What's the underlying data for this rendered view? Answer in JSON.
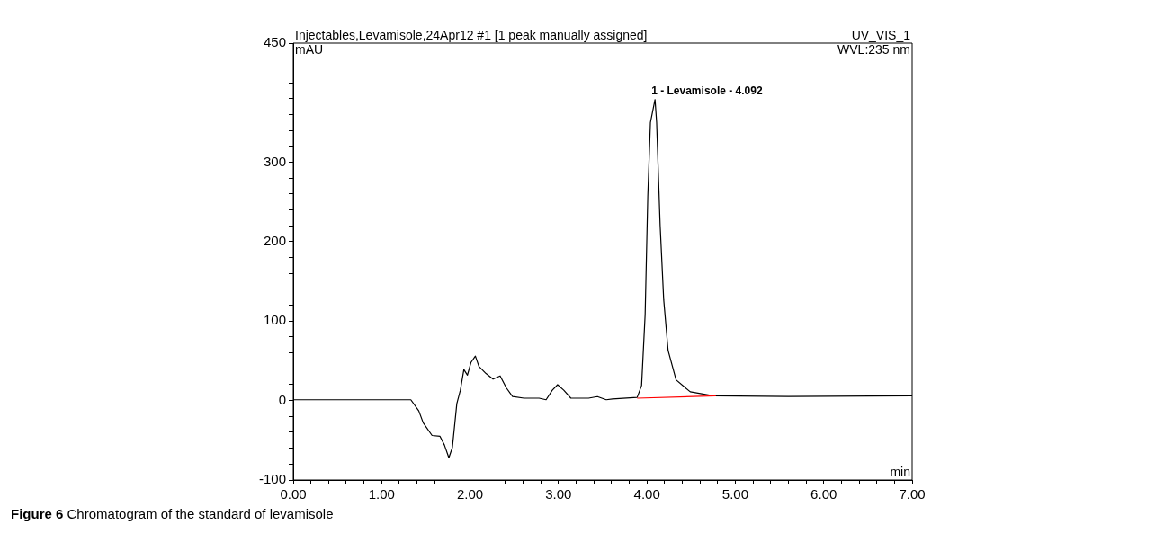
{
  "chart_data": {
    "type": "line",
    "title": "Injectables,Levamisole,24Apr12 #1 [1 peak manually assigned]",
    "subtitle": "UV_VIS_1",
    "ylabel": "mAU",
    "xlabel": "min",
    "annotations": [
      "WVL:235 nm",
      {
        "text": "1 - Levamisole - 4.092",
        "x": 4.092,
        "y": 379
      },
      "Figure 6 Chromatogram of the standard of levamisole"
    ],
    "series": [
      {
        "color": "#000000",
        "x": [
          0,
          0.5,
          1.0,
          1.33,
          1.42,
          1.47,
          1.57,
          1.66,
          1.71,
          1.76,
          1.8,
          1.85,
          1.89,
          1.93,
          1.97,
          2.01,
          2.06,
          2.1,
          2.18,
          2.26,
          2.34,
          2.41,
          2.48,
          2.61,
          2.78,
          2.86,
          2.93,
          2.99,
          3.06,
          3.14,
          3.34,
          3.44,
          3.54,
          3.61,
          3.89,
          3.94,
          3.98,
          4.01,
          4.04,
          4.092,
          4.11,
          4.15,
          4.19,
          4.24,
          4.33,
          4.49,
          4.75,
          5.6,
          7.0
        ],
        "values": [
          1,
          1,
          1,
          1,
          -13,
          -28,
          -44,
          -45,
          -56,
          -72,
          -59,
          -4,
          13,
          39,
          32,
          48,
          56,
          43,
          34,
          27,
          31,
          16,
          5,
          3,
          3,
          1,
          13,
          20,
          13,
          3,
          3,
          5,
          1,
          2,
          4,
          19,
          108,
          257,
          350,
          379,
          350,
          220,
          127,
          63,
          26,
          11,
          6,
          5,
          6
        ]
      },
      {
        "color": "#ff0000",
        "x": [
          3.89,
          4.78
        ],
        "values": [
          3,
          6
        ]
      }
    ],
    "xlim": [
      0,
      7
    ],
    "ylim": [
      -100,
      450
    ],
    "xticks": [
      {
        "value": 0,
        "label": "0.00"
      },
      {
        "value": 0.2,
        "label": null
      },
      {
        "value": 0.4,
        "label": null
      },
      {
        "value": 0.6,
        "label": null
      },
      {
        "value": 0.8,
        "label": null
      },
      {
        "value": 1,
        "label": "1.00"
      },
      {
        "value": 1.2,
        "label": null
      },
      {
        "value": 1.4,
        "label": null
      },
      {
        "value": 1.6,
        "label": null
      },
      {
        "value": 1.8,
        "label": null
      },
      {
        "value": 2,
        "label": "2.00"
      },
      {
        "value": 2.2,
        "label": null
      },
      {
        "value": 2.4,
        "label": null
      },
      {
        "value": 2.6,
        "label": null
      },
      {
        "value": 2.8,
        "label": null
      },
      {
        "value": 3,
        "label": "3.00"
      },
      {
        "value": 3.2,
        "label": null
      },
      {
        "value": 3.4,
        "label": null
      },
      {
        "value": 3.6,
        "label": null
      },
      {
        "value": 3.8,
        "label": null
      },
      {
        "value": 4,
        "label": "4.00"
      },
      {
        "value": 4.2,
        "label": null
      },
      {
        "value": 4.4,
        "label": null
      },
      {
        "value": 4.6,
        "label": null
      },
      {
        "value": 4.8,
        "label": null
      },
      {
        "value": 5,
        "label": "5.00"
      },
      {
        "value": 5.2,
        "label": null
      },
      {
        "value": 5.4,
        "label": null
      },
      {
        "value": 5.6,
        "label": null
      },
      {
        "value": 5.8,
        "label": null
      },
      {
        "value": 6,
        "label": "6.00"
      },
      {
        "value": 6.2,
        "label": null
      },
      {
        "value": 6.4,
        "label": null
      },
      {
        "value": 6.6,
        "label": null
      },
      {
        "value": 6.8,
        "label": null
      },
      {
        "value": 7,
        "label": "7.00"
      }
    ],
    "yticks": [
      -100,
      {
        "value": -80,
        "label": null
      },
      {
        "value": -60,
        "label": null
      },
      {
        "value": -40,
        "label": null
      },
      {
        "value": -20,
        "label": null
      },
      0,
      {
        "value": 20,
        "label": null
      },
      {
        "value": 40,
        "label": null
      },
      {
        "value": 60,
        "label": null
      },
      {
        "value": 80,
        "label": null
      },
      100,
      {
        "value": 120,
        "label": null
      },
      {
        "value": 140,
        "label": null
      },
      {
        "value": 160,
        "label": null
      },
      {
        "value": 180,
        "label": null
      },
      200,
      {
        "value": 220,
        "label": null
      },
      {
        "value": 240,
        "label": null
      },
      {
        "value": 260,
        "label": null
      },
      {
        "value": 280,
        "label": null
      },
      300,
      {
        "value": 320,
        "label": null
      },
      {
        "value": 340,
        "label": null
      },
      {
        "value": 360,
        "label": null
      },
      {
        "value": 380,
        "label": null
      },
      {
        "value": 400,
        "label": null
      },
      {
        "value": 420,
        "label": null
      },
      {
        "value": 450
      }
    ],
    "grid": false,
    "legend": false,
    "marker": "none",
    "line_style": "solid"
  }
}
